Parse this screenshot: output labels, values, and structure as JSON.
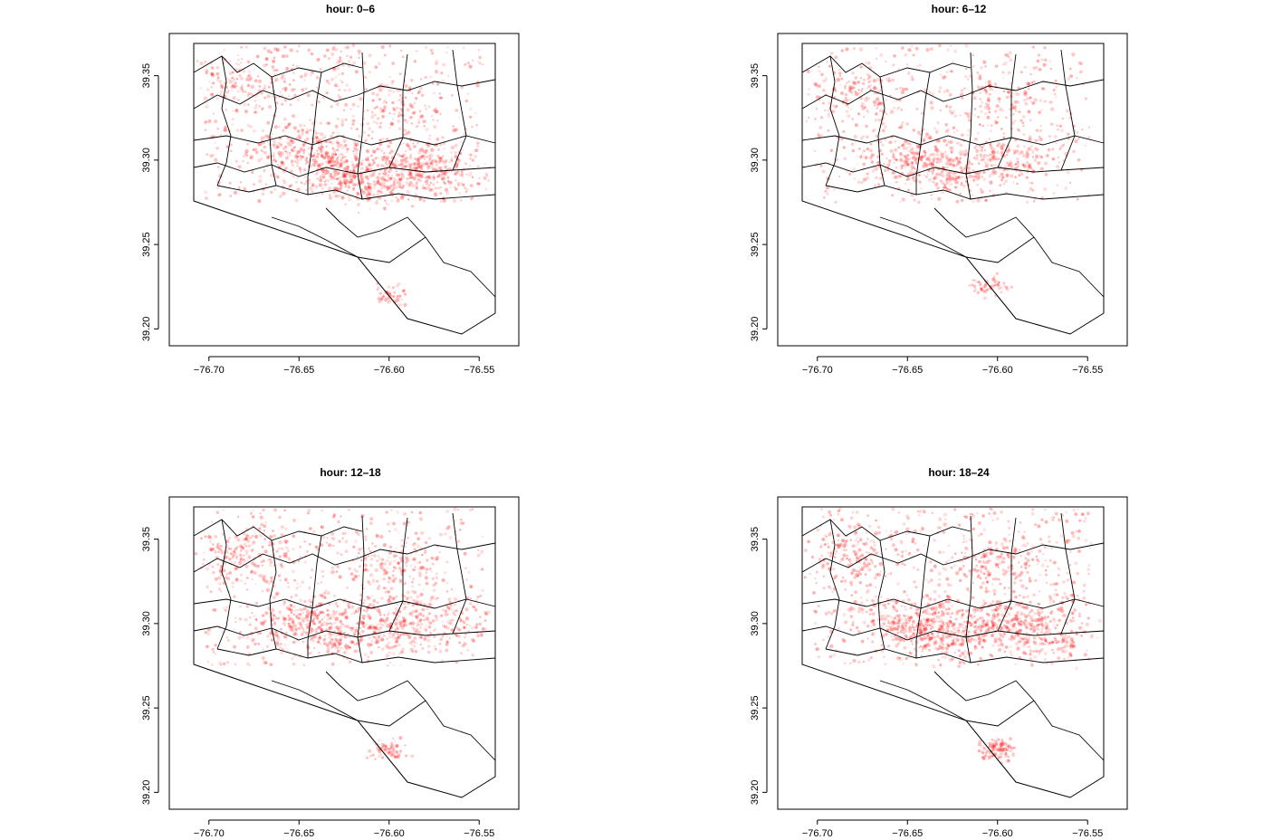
{
  "point_color": "#ff0000",
  "boundary_color": "#000000",
  "chart_data": [
    {
      "type": "scatter",
      "title": "hour: 0–6",
      "xlabel": "",
      "ylabel": "",
      "xlim": [
        -76.722,
        -76.528
      ],
      "ylim": [
        39.19,
        39.375
      ],
      "x_ticks": [
        "−76.70",
        "−76.65",
        "−76.60",
        "−76.55"
      ],
      "y_ticks": [
        "39.20",
        "39.25",
        "39.30",
        "39.35"
      ],
      "grid": false,
      "density_clusters": [
        {
          "lon": -76.65,
          "lat": 39.305,
          "weight": 7
        },
        {
          "lon": -76.63,
          "lat": 39.295,
          "weight": 8
        },
        {
          "lon": -76.61,
          "lat": 39.29,
          "weight": 9
        },
        {
          "lon": -76.585,
          "lat": 39.297,
          "weight": 8
        },
        {
          "lon": -76.57,
          "lat": 39.293,
          "weight": 5
        },
        {
          "lon": -76.68,
          "lat": 39.345,
          "weight": 4
        },
        {
          "lon": -76.6,
          "lat": 39.33,
          "weight": 4
        },
        {
          "lon": -76.6,
          "lat": 39.22,
          "weight": 3
        }
      ]
    },
    {
      "type": "scatter",
      "title": "hour: 6–12",
      "xlabel": "",
      "ylabel": "",
      "xlim": [
        -76.722,
        -76.528
      ],
      "ylim": [
        39.19,
        39.375
      ],
      "x_ticks": [
        "−76.70",
        "−76.65",
        "−76.60",
        "−76.55"
      ],
      "y_ticks": [
        "39.20",
        "39.25",
        "39.30",
        "39.35"
      ],
      "grid": false,
      "density_clusters": [
        {
          "lon": -76.65,
          "lat": 39.3,
          "weight": 6
        },
        {
          "lon": -76.625,
          "lat": 39.295,
          "weight": 6
        },
        {
          "lon": -76.59,
          "lat": 39.3,
          "weight": 6
        },
        {
          "lon": -76.68,
          "lat": 39.34,
          "weight": 4
        },
        {
          "lon": -76.6,
          "lat": 39.335,
          "weight": 3
        },
        {
          "lon": -76.605,
          "lat": 39.225,
          "weight": 2
        }
      ]
    },
    {
      "type": "scatter",
      "title": "hour: 12–18",
      "xlabel": "",
      "ylabel": "",
      "xlim": [
        -76.722,
        -76.528
      ],
      "ylim": [
        39.19,
        39.375
      ],
      "x_ticks": [
        "−76.70",
        "−76.65",
        "−76.60",
        "−76.55"
      ],
      "y_ticks": [
        "39.20",
        "39.25",
        "39.30",
        "39.35"
      ],
      "grid": false,
      "density_clusters": [
        {
          "lon": -76.65,
          "lat": 39.3,
          "weight": 8
        },
        {
          "lon": -76.625,
          "lat": 39.295,
          "weight": 8
        },
        {
          "lon": -76.595,
          "lat": 39.3,
          "weight": 8
        },
        {
          "lon": -76.68,
          "lat": 39.34,
          "weight": 5
        },
        {
          "lon": -76.6,
          "lat": 39.335,
          "weight": 5
        },
        {
          "lon": -76.56,
          "lat": 39.3,
          "weight": 4
        },
        {
          "lon": -76.6,
          "lat": 39.225,
          "weight": 3
        }
      ]
    },
    {
      "type": "scatter",
      "title": "hour: 18–24",
      "xlabel": "",
      "ylabel": "",
      "xlim": [
        -76.722,
        -76.528
      ],
      "ylim": [
        39.19,
        39.375
      ],
      "x_ticks": [
        "−76.70",
        "−76.65",
        "−76.60",
        "−76.55"
      ],
      "y_ticks": [
        "39.20",
        "39.25",
        "39.30",
        "39.35"
      ],
      "grid": false,
      "density_clusters": [
        {
          "lon": -76.65,
          "lat": 39.3,
          "weight": 10
        },
        {
          "lon": -76.625,
          "lat": 39.295,
          "weight": 10
        },
        {
          "lon": -76.59,
          "lat": 39.3,
          "weight": 10
        },
        {
          "lon": -76.57,
          "lat": 39.295,
          "weight": 6
        },
        {
          "lon": -76.68,
          "lat": 39.34,
          "weight": 6
        },
        {
          "lon": -76.6,
          "lat": 39.335,
          "weight": 6
        },
        {
          "lon": -76.6,
          "lat": 39.225,
          "weight": 4
        }
      ]
    }
  ]
}
